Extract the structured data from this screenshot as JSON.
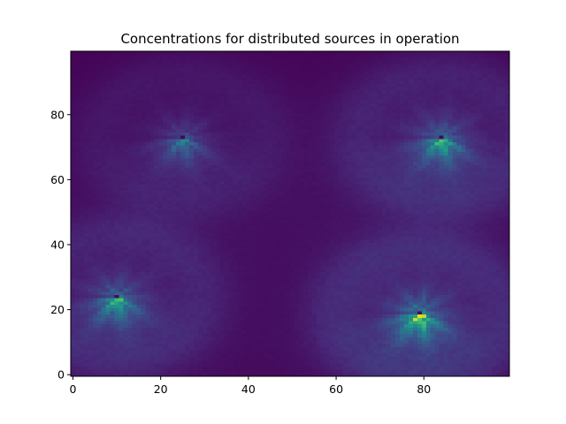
{
  "chart_data": {
    "type": "heatmap",
    "title": "Concentrations for distributed sources in operation",
    "xlabel": "",
    "ylabel": "",
    "xlim": [
      0,
      99
    ],
    "ylim": [
      0,
      99
    ],
    "origin": "lower",
    "grid": false,
    "legend": "none",
    "colormap": "viridis",
    "x_ticks": [
      0,
      20,
      40,
      60,
      80
    ],
    "y_ticks": [
      0,
      20,
      40,
      60,
      80
    ],
    "sources": [
      {
        "x": 10,
        "y": 24,
        "peak": 0.8
      },
      {
        "x": 25,
        "y": 73,
        "peak": 0.5
      },
      {
        "x": 84,
        "y": 73,
        "peak": 0.8
      },
      {
        "x": 79,
        "y": 19,
        "peak": 1.0
      }
    ],
    "colors": {
      "background": "#440154",
      "axis": "#000000"
    }
  }
}
